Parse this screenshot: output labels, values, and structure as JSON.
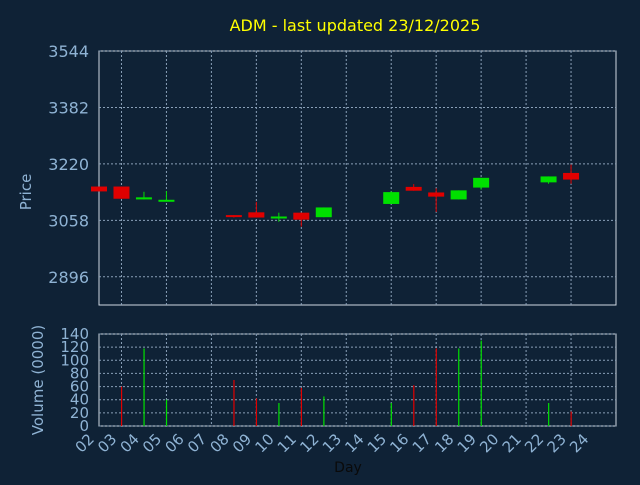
{
  "chart_data": [
    {
      "type": "candlestick",
      "title": "ADM - last updated 23/12/2025",
      "ylabel": "Price",
      "ylim": [
        2815,
        3544
      ],
      "yticks": [
        "3544",
        "3382",
        "3220",
        "3058",
        "2896"
      ],
      "grid": true,
      "colors": {
        "up": "#00e000",
        "down": "#e00000",
        "title": "#ffff00",
        "axis_text": "#8fb3d4",
        "grid": "#8aa0b8"
      },
      "days": [
        "02",
        "03",
        "04",
        "05",
        "06",
        "07",
        "08",
        "09",
        "10",
        "11",
        "12",
        "13",
        "14",
        "15",
        "16",
        "17",
        "18",
        "19",
        "20",
        "21",
        "22",
        "23",
        "24"
      ],
      "candles": [
        {
          "day": "02",
          "open": 3155,
          "close": 3141,
          "high": 3155,
          "low": 3141
        },
        {
          "day": "03",
          "open": 3155,
          "close": 3120,
          "high": 3155,
          "low": 3120
        },
        {
          "day": "04",
          "open": 3118,
          "close": 3124,
          "high": 3140,
          "low": 3118
        },
        {
          "day": "05",
          "open": 3114,
          "close": 3117,
          "high": 3142,
          "low": 3114
        },
        {
          "day": "08",
          "open": 3073,
          "close": 3071,
          "high": 3073,
          "low": 3066
        },
        {
          "day": "09",
          "open": 3081,
          "close": 3066,
          "high": 3111,
          "low": 3066
        },
        {
          "day": "10",
          "open": 3065,
          "close": 3069,
          "high": 3080,
          "low": 3054
        },
        {
          "day": "11",
          "open": 3080,
          "close": 3060,
          "high": 3080,
          "low": 3040
        },
        {
          "day": "12",
          "open": 3067,
          "close": 3095,
          "high": 3095,
          "low": 3067
        },
        {
          "day": "15",
          "open": 3105,
          "close": 3139,
          "high": 3141,
          "low": 3105
        },
        {
          "day": "16",
          "open": 3154,
          "close": 3143,
          "high": 3162,
          "low": 3143
        },
        {
          "day": "17",
          "open": 3138,
          "close": 3126,
          "high": 3150,
          "low": 3082
        },
        {
          "day": "18",
          "open": 3118,
          "close": 3144,
          "high": 3144,
          "low": 3118
        },
        {
          "day": "19",
          "open": 3152,
          "close": 3180,
          "high": 3180,
          "low": 3146
        },
        {
          "day": "22",
          "open": 3167,
          "close": 3184,
          "high": 3184,
          "low": 3163
        },
        {
          "day": "23",
          "open": 3194,
          "close": 3175,
          "high": 3218,
          "low": 3163
        }
      ]
    },
    {
      "type": "bar",
      "xlabel": "Day",
      "ylabel": "Volume (0000)",
      "ylim": [
        0,
        140
      ],
      "yticks": [
        "0",
        "20",
        "40",
        "60",
        "80",
        "100",
        "120",
        "140"
      ],
      "grid": true,
      "bars": [
        {
          "day": "03",
          "value": 60,
          "dir": "down"
        },
        {
          "day": "04",
          "value": 118,
          "dir": "up"
        },
        {
          "day": "05",
          "value": 40,
          "dir": "up"
        },
        {
          "day": "08",
          "value": 70,
          "dir": "down"
        },
        {
          "day": "09",
          "value": 42,
          "dir": "down"
        },
        {
          "day": "10",
          "value": 35,
          "dir": "up"
        },
        {
          "day": "11",
          "value": 58,
          "dir": "down"
        },
        {
          "day": "12",
          "value": 45,
          "dir": "up"
        },
        {
          "day": "15",
          "value": 35,
          "dir": "up"
        },
        {
          "day": "16",
          "value": 62,
          "dir": "down"
        },
        {
          "day": "17",
          "value": 118,
          "dir": "down"
        },
        {
          "day": "18",
          "value": 118,
          "dir": "up"
        },
        {
          "day": "19",
          "value": 130,
          "dir": "up"
        },
        {
          "day": "22",
          "value": 35,
          "dir": "up"
        },
        {
          "day": "23",
          "value": 22,
          "dir": "down"
        }
      ]
    }
  ]
}
